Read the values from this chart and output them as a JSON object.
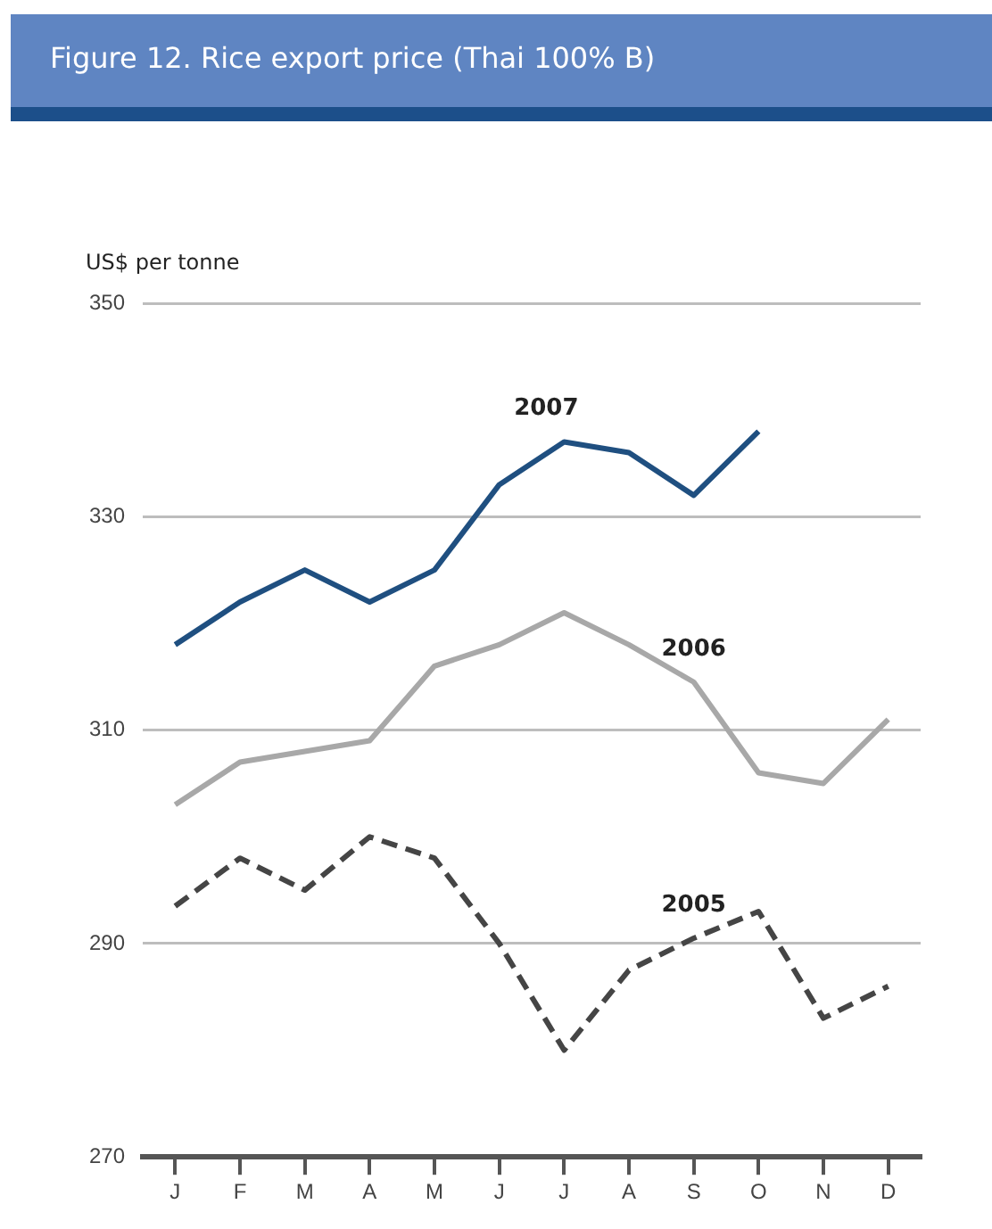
{
  "chart_data": {
    "type": "line",
    "title": "Figure 12.  Rice export price (Thai 100% B)",
    "ylabel": "US$ per tonne",
    "categories": [
      "J",
      "F",
      "M",
      "A",
      "M",
      "J",
      "J",
      "A",
      "S",
      "O",
      "N",
      "D"
    ],
    "series": [
      {
        "name": "2007",
        "color": "#1f4f80",
        "values": [
          318,
          322,
          325,
          322,
          325,
          333,
          337,
          336,
          332,
          338,
          null,
          null
        ]
      },
      {
        "name": "2006",
        "color": "#a8a8a8",
        "values": [
          303,
          307,
          308,
          309,
          316,
          318,
          321,
          318,
          314.5,
          306,
          305,
          311
        ]
      },
      {
        "name": "2005",
        "color": "#454545",
        "line_style": "dashed",
        "values": [
          293.5,
          298,
          295,
          300,
          298,
          290,
          280,
          287.5,
          290.5,
          293,
          283,
          286
        ]
      }
    ],
    "ylim": [
      270,
      350
    ],
    "yticks": [
      270,
      290,
      310,
      330,
      350
    ],
    "grid": "y",
    "legend": false,
    "marker": "none"
  }
}
